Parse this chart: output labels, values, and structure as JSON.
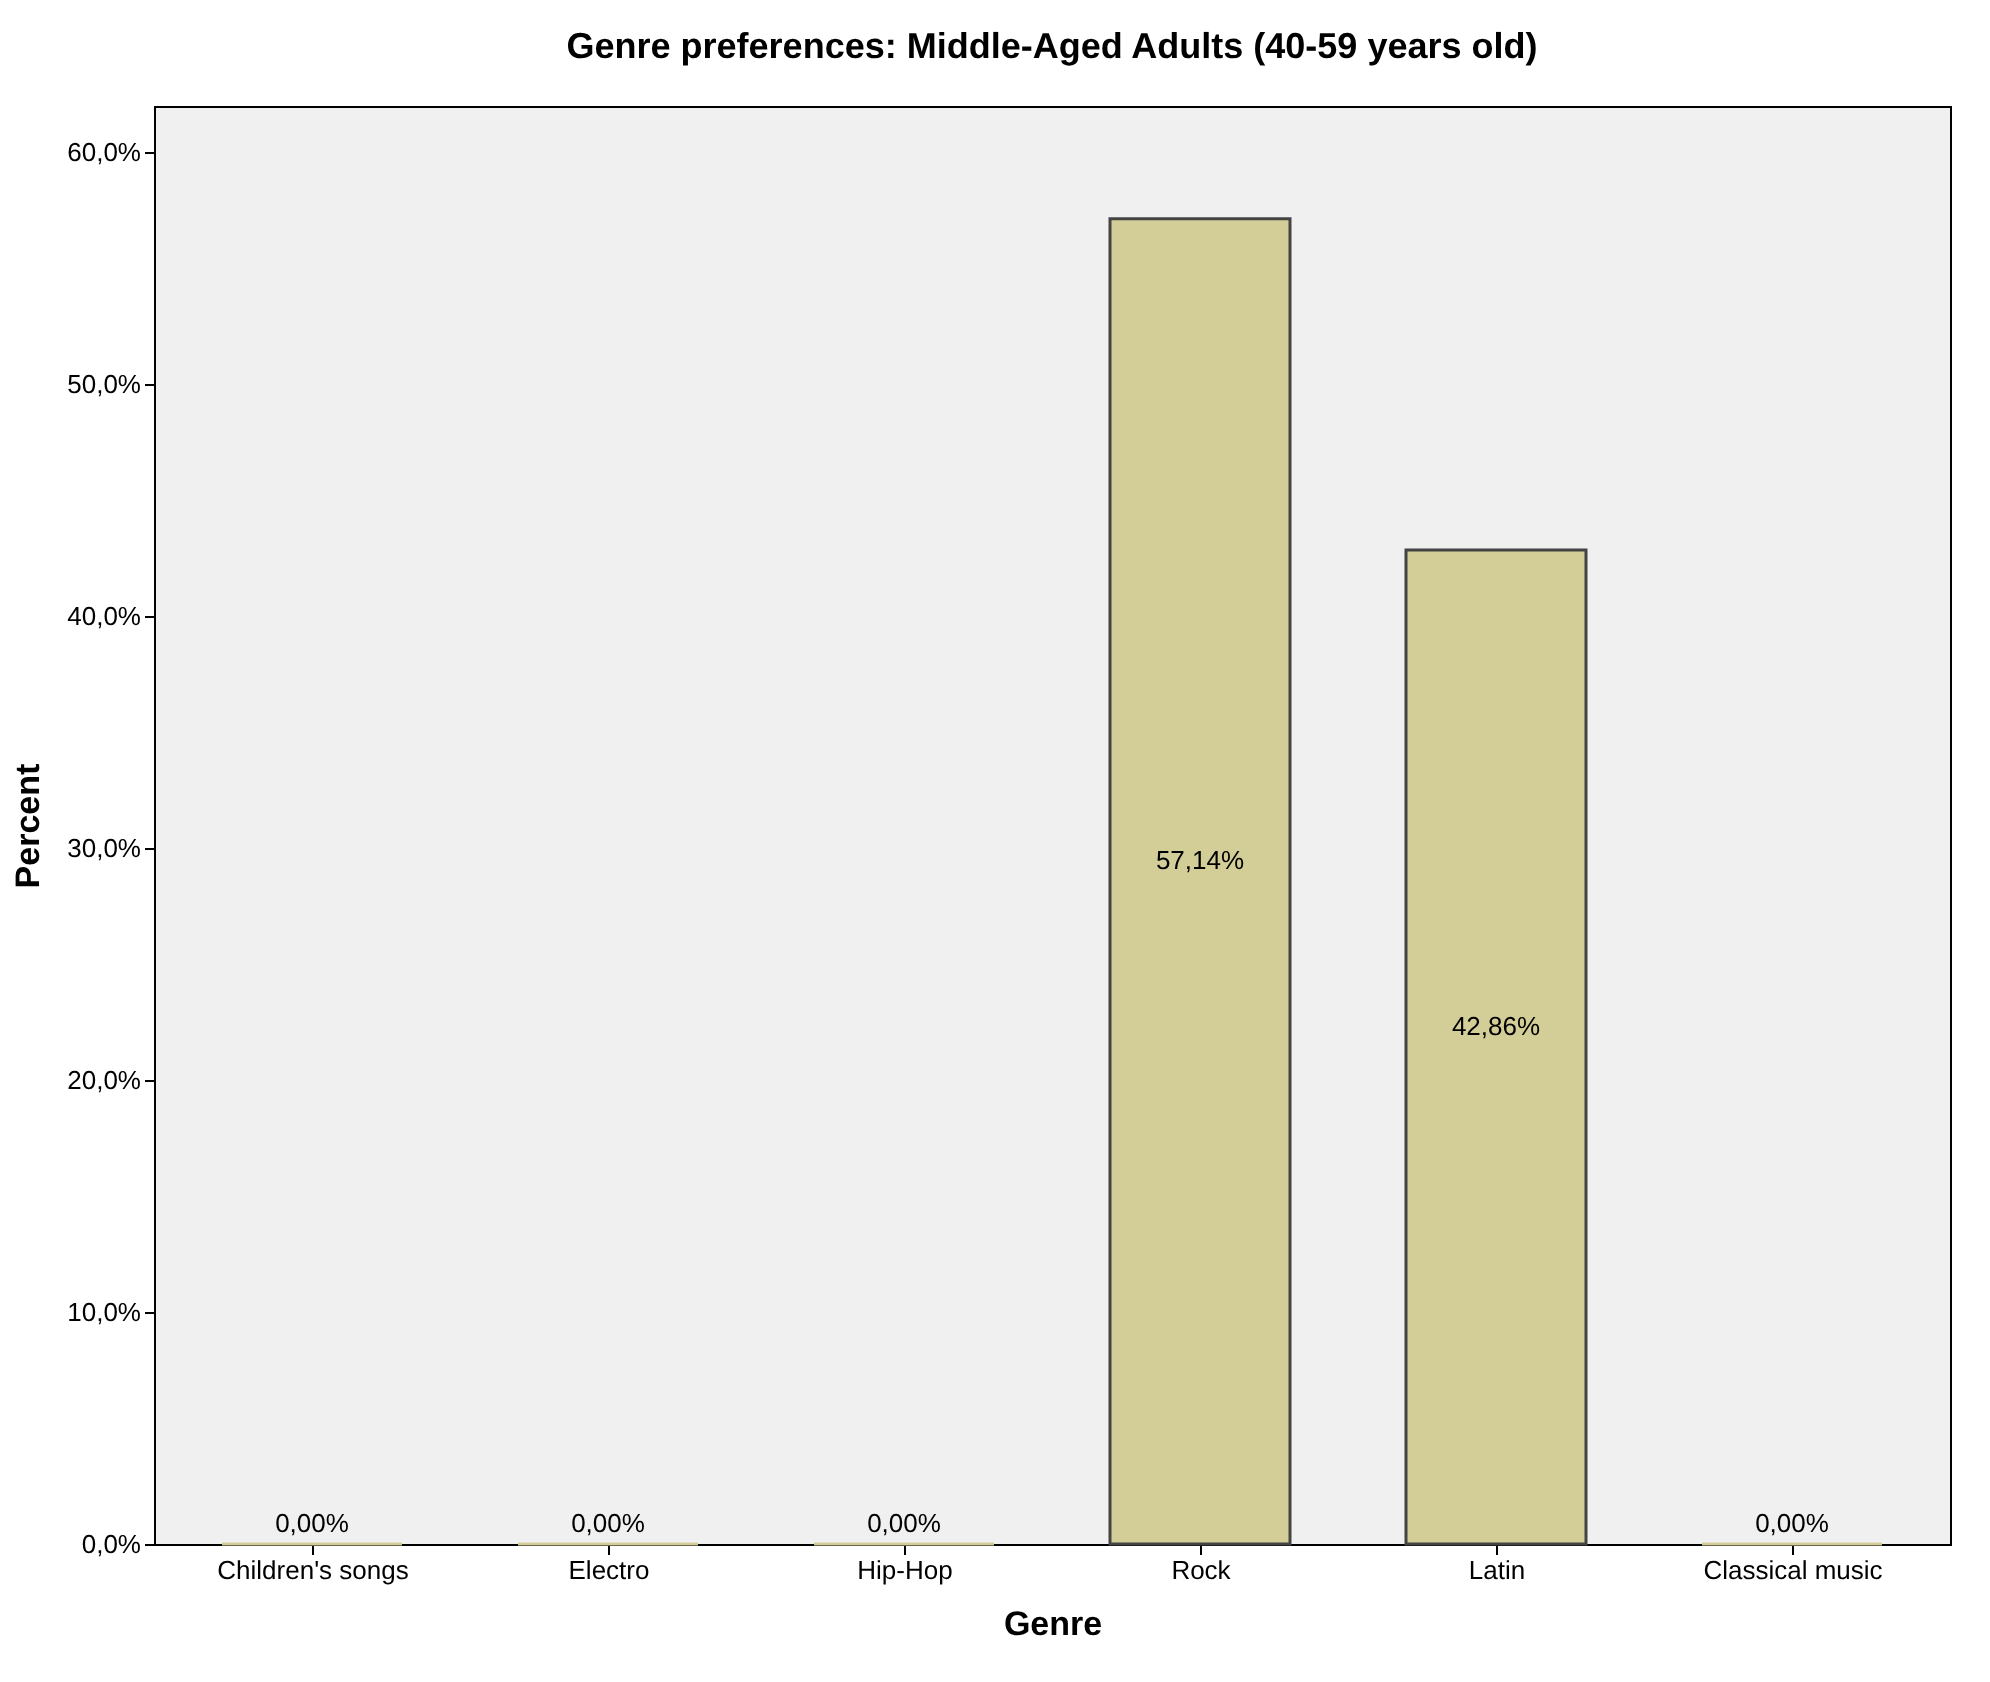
{
  "chart_data": {
    "type": "bar",
    "title": "Genre preferences: Middle-Aged Adults (40-59 years old)",
    "xlabel": "Genre",
    "ylabel": "Percent",
    "categories": [
      "Children's songs",
      "Electro",
      "Hip-Hop",
      "Rock",
      "Latin",
      "Classical music"
    ],
    "values": [
      0,
      0,
      0,
      57.14,
      42.86,
      0
    ],
    "value_labels": [
      "0,00%",
      "0,00%",
      "0,00%",
      "57,14%",
      "42,86%",
      "0,00%"
    ],
    "color": "#d3ce97",
    "ylim": [
      0,
      62
    ],
    "yticks": [
      {
        "value": 0,
        "label": "0,0%"
      },
      {
        "value": 10,
        "label": "10,0%"
      },
      {
        "value": 20,
        "label": "20,0%"
      },
      {
        "value": 30,
        "label": "30,0%"
      },
      {
        "value": 40,
        "label": "40,0%"
      },
      {
        "value": 50,
        "label": "50,0%"
      },
      {
        "value": 60,
        "label": "60,0%"
      }
    ],
    "grid": false
  }
}
